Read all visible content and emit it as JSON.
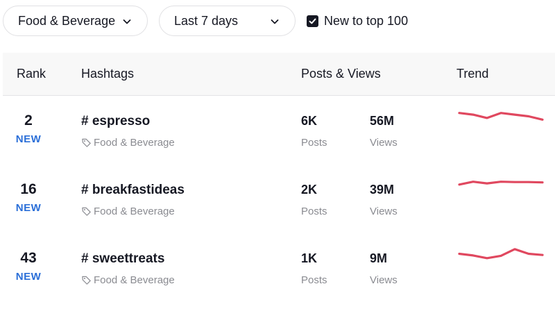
{
  "filters": {
    "industry": "Food & Beverage",
    "period": "Last 7 days",
    "new_to_top_label": "New to top 100",
    "new_to_top_checked": true
  },
  "table": {
    "headers": {
      "rank": "Rank",
      "hashtags": "Hashtags",
      "posts_views": "Posts & Views",
      "trend": "Trend"
    },
    "trend_color": "#e0485f",
    "new_color": "#2b6fd8",
    "rows": [
      {
        "rank": "2",
        "badge": "NEW",
        "hashtag": "# espresso",
        "category": "Food & Beverage",
        "posts": "6K",
        "posts_label": "Posts",
        "views": "56M",
        "views_label": "Views",
        "trend": [
          0.72,
          0.62,
          0.42,
          0.72,
          0.62,
          0.52,
          0.32
        ]
      },
      {
        "rank": "16",
        "badge": "NEW",
        "hashtag": "# breakfastideas",
        "category": "Food & Beverage",
        "posts": "2K",
        "posts_label": "Posts",
        "views": "39M",
        "views_label": "Views",
        "trend": [
          0.55,
          0.72,
          0.62,
          0.72,
          0.7,
          0.7,
          0.68
        ]
      },
      {
        "rank": "43",
        "badge": "NEW",
        "hashtag": "# sweettreats",
        "category": "Food & Beverage",
        "posts": "1K",
        "posts_label": "Posts",
        "views": "9M",
        "views_label": "Views",
        "trend": [
          0.52,
          0.42,
          0.26,
          0.4,
          0.8,
          0.52,
          0.45
        ]
      }
    ]
  }
}
